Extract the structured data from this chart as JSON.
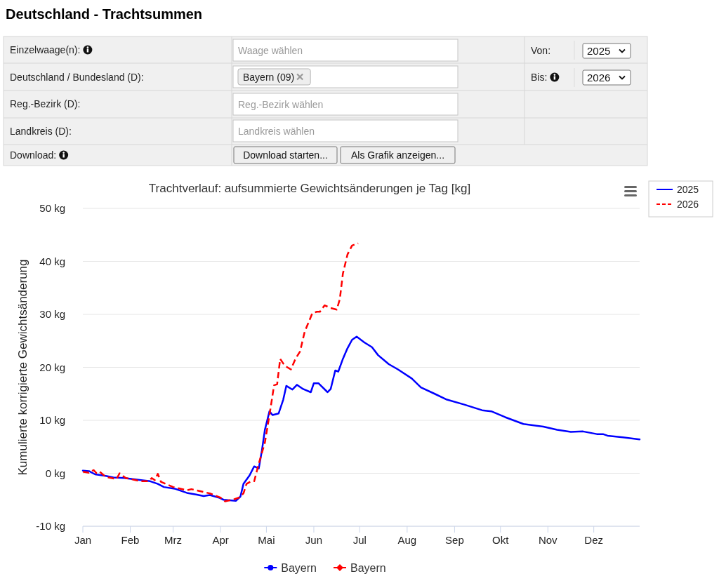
{
  "chart_data": [
    {
      "type": "other",
      "title": "Deutschland - Trachtsummen",
      "annotations": [
        "Einzelwaage(n):",
        "Waage wählen",
        "Von:",
        "2025",
        "Deutschland / Bundesland (D):",
        "Bayern (09)",
        "Bis:",
        "2026",
        "Reg.-Bezirk (D):",
        "Reg.-Bezirk wählen",
        "Landkreis (D):",
        "Landkreis wählen",
        "Download:",
        "Download starten...",
        "Als Grafik anzeigen..."
      ]
    },
    {
      "type": "line",
      "title": "Trachtverlauf: aufsummierte Gewichtsänderungen je Tag [kg]",
      "ylabel": "Kumulierte korrigierte Gewichtsänderung",
      "xlim": [
        "--01-01",
        "--12-31"
      ],
      "xticks": [
        {
          "value": "--01-01",
          "label": "Jan"
        },
        {
          "value": "--02-01",
          "label": "Feb"
        },
        {
          "value": "--03-01",
          "label": "Mrz"
        },
        {
          "value": "--04-01",
          "label": "Apr"
        },
        {
          "value": "--05-01",
          "label": "Mai"
        },
        {
          "value": "--06-01",
          "label": "Jun"
        },
        {
          "value": "--07-01",
          "label": "Jul"
        },
        {
          "value": "--08-01",
          "label": "Aug"
        },
        {
          "value": "--09-01",
          "label": "Sep"
        },
        {
          "value": "--10-01",
          "label": "Okt"
        },
        {
          "value": "--11-01",
          "label": "Nov"
        },
        {
          "value": "--12-01",
          "label": "Dez"
        }
      ],
      "ylim": [
        -10,
        50
      ],
      "yticks": [
        {
          "value": -10,
          "label": "-10 kg"
        },
        {
          "value": 0,
          "label": "0 kg"
        },
        {
          "value": 10,
          "label": "10 kg"
        },
        {
          "value": 20,
          "label": "20 kg"
        },
        {
          "value": 30,
          "label": "30 kg"
        },
        {
          "value": 40,
          "label": "40 kg"
        },
        {
          "value": 50,
          "label": "50 kg"
        }
      ],
      "grid": "y",
      "legend": "top right",
      "annotations": [
        "Bayern",
        "Bayern"
      ],
      "series": [
        {
          "name": "2025",
          "color": "#0000ff",
          "x": [
            "--01-01",
            "--01-05",
            "--01-09",
            "--01-16",
            "--01-21",
            "--01-28",
            "--02-08",
            "--02-14",
            "--02-19",
            "--02-23",
            "--03-02",
            "--03-10",
            "--03-16",
            "--03-21",
            "--03-25",
            "--03-31",
            "--04-03",
            "--04-11",
            "--04-14",
            "--04-16",
            "--04-20",
            "--04-23",
            "--04-26",
            "--04-28",
            "--04-30",
            "--05-03",
            "--05-05",
            "--05-09",
            "--05-12",
            "--05-14",
            "--05-18",
            "--05-21",
            "--05-25",
            "--05-30",
            "--06-01",
            "--06-04",
            "--06-10",
            "--06-12",
            "--06-15",
            "--06-17",
            "--06-20",
            "--06-23",
            "--06-26",
            "--06-29",
            "--07-04",
            "--07-09",
            "--07-13",
            "--07-20",
            "--07-26",
            "--08-04",
            "--08-10",
            "--08-19",
            "--08-27",
            "--09-07",
            "--09-19",
            "--09-25",
            "--10-04",
            "--10-16",
            "--10-29",
            "--11-07",
            "--11-16",
            "--11-24",
            "--12-03",
            "--12-07",
            "--12-10",
            "--12-20",
            "--12-31"
          ],
          "values": [
            0.5,
            0.4,
            -0.2,
            -0.5,
            -0.8,
            -0.9,
            -1.3,
            -1.5,
            -2.0,
            -2.6,
            -2.9,
            -3.7,
            -4.0,
            -4.3,
            -4.1,
            -4.6,
            -5.0,
            -5.2,
            -4.4,
            -2.0,
            -0.4,
            1.3,
            0.9,
            4.2,
            8.2,
            11.7,
            11.0,
            11.3,
            13.9,
            16.5,
            15.8,
            16.7,
            15.9,
            15.3,
            17.0,
            17.0,
            15.3,
            15.9,
            19.4,
            19.2,
            21.6,
            23.6,
            25.2,
            25.8,
            24.7,
            23.8,
            22.3,
            20.6,
            19.6,
            17.9,
            16.2,
            15.0,
            13.9,
            13.0,
            11.9,
            11.7,
            10.6,
            9.3,
            8.8,
            8.2,
            7.8,
            7.9,
            7.4,
            7.4,
            7.1,
            6.8,
            6.4
          ]
        },
        {
          "name": "2026",
          "color": "#ff0000",
          "line_style": "dashed",
          "x": [
            "--01-01",
            "--01-05",
            "--01-08",
            "--01-10",
            "--01-12",
            "--01-16",
            "--01-23",
            "--01-25",
            "--01-29",
            "--02-08",
            "--02-13",
            "--02-15",
            "--02-17",
            "--02-19",
            "--02-21",
            "--03-01",
            "--03-10",
            "--03-13",
            "--03-25",
            "--04-01",
            "--04-04",
            "--04-10",
            "--04-13",
            "--04-16",
            "--04-18",
            "--04-21",
            "--04-23",
            "--04-26",
            "--04-30",
            "--05-03",
            "--05-06",
            "--05-08",
            "--05-10",
            "--05-13",
            "--05-17",
            "--05-20",
            "--05-23",
            "--05-26",
            "--05-31",
            "--06-03",
            "--06-05",
            "--06-08",
            "--06-12",
            "--06-16",
            "--06-18",
            "--06-20",
            "--06-23",
            "--06-26",
            "--06-30"
          ],
          "values": [
            0.3,
            0.1,
            0.6,
            0.0,
            0.3,
            -0.7,
            -1.1,
            0.0,
            -0.9,
            -1.5,
            -1.5,
            -0.9,
            -1.3,
            -0.1,
            -1.6,
            -2.6,
            -3.2,
            -3.0,
            -3.8,
            -4.6,
            -5.3,
            -4.9,
            -4.6,
            -3.8,
            -2.0,
            -1.5,
            -1.5,
            1.8,
            5.8,
            11.0,
            16.6,
            16.8,
            21.6,
            20.3,
            19.6,
            21.6,
            23.0,
            26.7,
            30.2,
            30.5,
            30.5,
            31.7,
            31.2,
            30.9,
            32.9,
            37.7,
            41.3,
            43.0,
            43.4
          ]
        }
      ]
    }
  ]
}
